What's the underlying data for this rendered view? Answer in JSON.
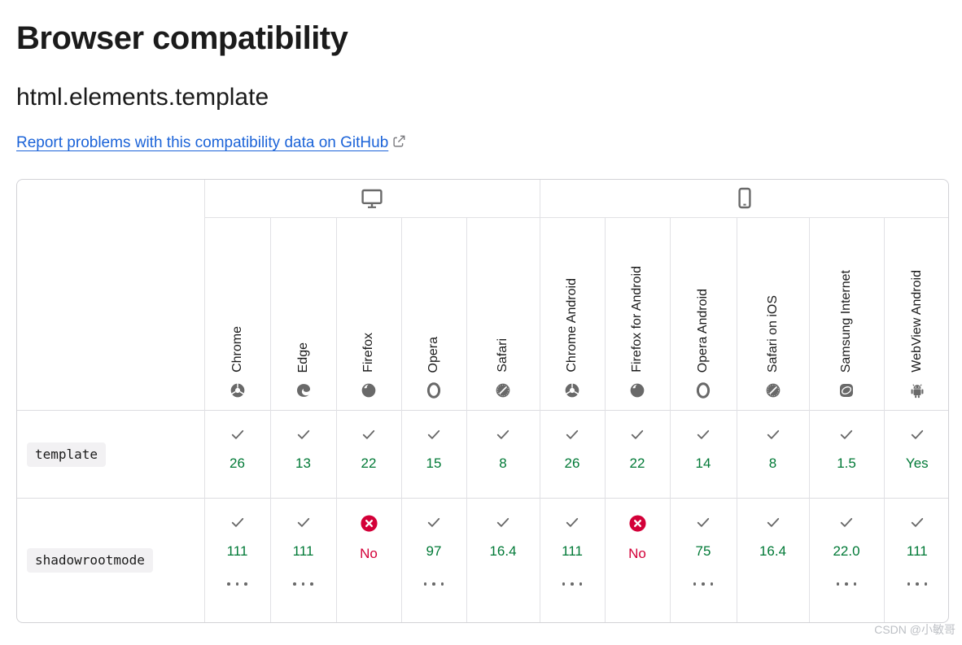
{
  "page": {
    "title": "Browser compatibility",
    "subtitle": "html.elements.template",
    "report_link": {
      "label": "Report problems with this compatibility data on GitHub",
      "icon": "external-link-icon"
    }
  },
  "colors": {
    "supported_green": "#007936",
    "unsupported_red": "#d30038",
    "icon_gray": "#696969",
    "link_blue": "#1b63d8",
    "code_chip_bg": "#f2f1f3"
  },
  "table": {
    "device_groups": [
      {
        "name": "desktop",
        "icon": "desktop-icon",
        "span": 5
      },
      {
        "name": "mobile",
        "icon": "mobile-icon",
        "span": 6
      }
    ],
    "browsers": [
      {
        "label": "Chrome",
        "icon": "chrome-icon"
      },
      {
        "label": "Edge",
        "icon": "edge-icon"
      },
      {
        "label": "Firefox",
        "icon": "firefox-icon"
      },
      {
        "label": "Opera",
        "icon": "opera-icon"
      },
      {
        "label": "Safari",
        "icon": "safari-icon"
      },
      {
        "label": "Chrome Android",
        "icon": "chrome-icon"
      },
      {
        "label": "Firefox for Android",
        "icon": "firefox-icon"
      },
      {
        "label": "Opera Android",
        "icon": "opera-icon"
      },
      {
        "label": "Safari on iOS",
        "icon": "safari-icon"
      },
      {
        "label": "Samsung Internet",
        "icon": "samsung-internet-icon"
      },
      {
        "label": "WebView Android",
        "icon": "webview-android-icon"
      }
    ],
    "rows": [
      {
        "feature": "template",
        "cells": [
          {
            "status": "supported",
            "version": "26",
            "footnote": false
          },
          {
            "status": "supported",
            "version": "13",
            "footnote": false
          },
          {
            "status": "supported",
            "version": "22",
            "footnote": false
          },
          {
            "status": "supported",
            "version": "15",
            "footnote": false
          },
          {
            "status": "supported",
            "version": "8",
            "footnote": false
          },
          {
            "status": "supported",
            "version": "26",
            "footnote": false
          },
          {
            "status": "supported",
            "version": "22",
            "footnote": false
          },
          {
            "status": "supported",
            "version": "14",
            "footnote": false
          },
          {
            "status": "supported",
            "version": "8",
            "footnote": false
          },
          {
            "status": "supported",
            "version": "1.5",
            "footnote": false
          },
          {
            "status": "supported",
            "version": "Yes",
            "footnote": false
          }
        ]
      },
      {
        "feature": "shadowrootmode",
        "cells": [
          {
            "status": "supported",
            "version": "111",
            "footnote": true
          },
          {
            "status": "supported",
            "version": "111",
            "footnote": true
          },
          {
            "status": "unsupported",
            "version": "No",
            "footnote": false
          },
          {
            "status": "supported",
            "version": "97",
            "footnote": true
          },
          {
            "status": "supported",
            "version": "16.4",
            "footnote": false
          },
          {
            "status": "supported",
            "version": "111",
            "footnote": true
          },
          {
            "status": "unsupported",
            "version": "No",
            "footnote": false
          },
          {
            "status": "supported",
            "version": "75",
            "footnote": true
          },
          {
            "status": "supported",
            "version": "16.4",
            "footnote": false
          },
          {
            "status": "supported",
            "version": "22.0",
            "footnote": true
          },
          {
            "status": "supported",
            "version": "111",
            "footnote": true
          }
        ]
      }
    ]
  },
  "watermark": "CSDN @小敏哥"
}
